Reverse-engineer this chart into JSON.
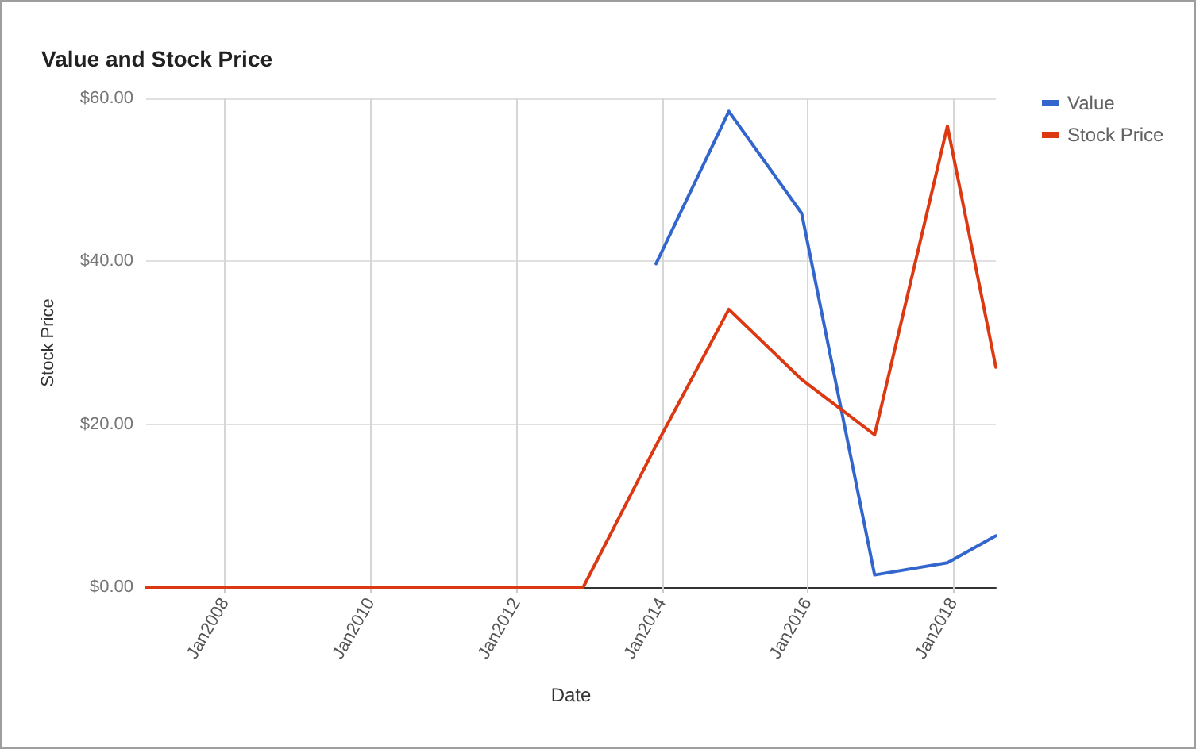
{
  "chart_data": {
    "type": "line",
    "title": "Value and Stock Price",
    "xlabel": "Date",
    "ylabel": "Stock Price",
    "series": [
      {
        "name": "Value",
        "color": "#3366cc",
        "x": [
          "2013-12",
          "2014-12",
          "2015-12",
          "2016-12",
          "2017-12",
          "2018-08"
        ],
        "values": [
          39.7,
          58.4,
          45.9,
          1.5,
          3.0,
          6.3
        ]
      },
      {
        "name": "Stock Price",
        "color": "#dc3912",
        "x": [
          "2006-12",
          "2007-12",
          "2008-12",
          "2009-12",
          "2010-12",
          "2011-12",
          "2012-12",
          "2013-12",
          "2014-12",
          "2015-12",
          "2016-12",
          "2017-12",
          "2018-08"
        ],
        "values": [
          0,
          0,
          0,
          0,
          0,
          0,
          0,
          17.4,
          34.1,
          25.5,
          18.7,
          56.6,
          27.0
        ]
      }
    ],
    "xlim": [
      "2006-12",
      "2018-08"
    ],
    "xticks": [
      {
        "value": "2008-01",
        "label": "Jan2008"
      },
      {
        "value": "2010-01",
        "label": "Jan2010"
      },
      {
        "value": "2012-01",
        "label": "Jan2012"
      },
      {
        "value": "2014-01",
        "label": "Jan2014"
      },
      {
        "value": "2016-01",
        "label": "Jan2016"
      },
      {
        "value": "2018-01",
        "label": "Jan2018"
      }
    ],
    "ylim": [
      0,
      60
    ],
    "yticks": [
      {
        "value": 0,
        "label": "$0.00"
      },
      {
        "value": 20,
        "label": "$20.00"
      },
      {
        "value": 40,
        "label": "$40.00"
      },
      {
        "value": 60,
        "label": "$60.00"
      }
    ],
    "grid": true,
    "legend": "top right",
    "marker": "none",
    "line_style": "solid"
  }
}
